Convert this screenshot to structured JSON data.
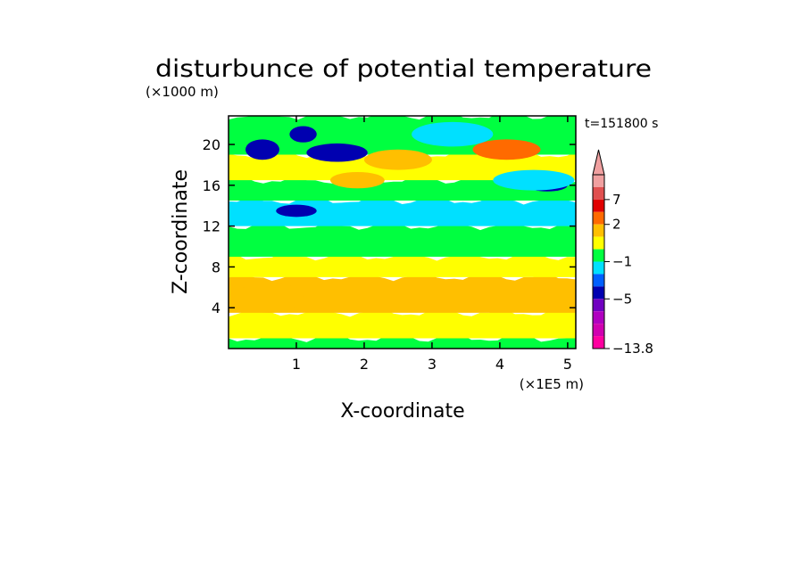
{
  "chart_data": {
    "type": "heatmap",
    "title": "disturbunce of potential temperature",
    "time_label": "t=151800 s",
    "xlabel": "X-coordinate",
    "ylabel": "Z-coordinate",
    "x_unit_label": "(×1E5 m)",
    "y_unit_label": "(×1000 m)",
    "xlim": [
      0,
      5.12
    ],
    "ylim": [
      0,
      22.8
    ],
    "x_ticks": [
      {
        "value": 1,
        "label": "1"
      },
      {
        "value": 2,
        "label": "2"
      },
      {
        "value": 3,
        "label": "3"
      },
      {
        "value": 4,
        "label": "4"
      },
      {
        "value": 5,
        "label": "5"
      }
    ],
    "y_ticks": [
      {
        "value": 4,
        "label": "4"
      },
      {
        "value": 8,
        "label": "8"
      },
      {
        "value": 12,
        "label": "12"
      },
      {
        "value": 16,
        "label": "16"
      },
      {
        "value": 20,
        "label": "20"
      }
    ],
    "colorbar": {
      "levels": [
        {
          "color": "#f0a0a0",
          "value": null
        },
        {
          "color": "#e05050",
          "value": null
        },
        {
          "color": "#e00000",
          "value": null
        },
        {
          "color": "#ff6a00",
          "value": null
        },
        {
          "color": "#ffbf00",
          "value": null
        },
        {
          "color": "#ffff00",
          "value": null
        },
        {
          "color": "#00ff40",
          "value": null
        },
        {
          "color": "#00e0ff",
          "value": null
        },
        {
          "color": "#0060ff",
          "value": null
        },
        {
          "color": "#0000b0",
          "value": null
        },
        {
          "color": "#7000c0",
          "value": null
        },
        {
          "color": "#b000c0",
          "value": null
        },
        {
          "color": "#d000b0",
          "value": null
        },
        {
          "color": "#ff00a0",
          "value": null
        }
      ],
      "tick_labels": [
        "7",
        "2",
        "−1",
        "−5",
        "−13.8"
      ],
      "extend": "max"
    },
    "field_bands": [
      {
        "z_range": [
          0,
          1
        ],
        "color": "#00ff40"
      },
      {
        "z_range": [
          1,
          3.5
        ],
        "color": "#ffff00"
      },
      {
        "z_range": [
          3.5,
          7
        ],
        "color": "#ffbf00"
      },
      {
        "z_range": [
          7,
          9
        ],
        "color": "#ffff00"
      },
      {
        "z_range": [
          9,
          12
        ],
        "color": "#00ff40"
      },
      {
        "z_range": [
          12,
          14.5
        ],
        "color": "#00e0ff"
      },
      {
        "z_range": [
          14.5,
          16.5
        ],
        "color": "#00ff40"
      },
      {
        "z_range": [
          16.5,
          19
        ],
        "color": "#ffff00"
      },
      {
        "z_range": [
          19,
          22.8
        ],
        "color": "#00ff40"
      }
    ],
    "field_features": [
      {
        "x": 0.5,
        "z": 19.5,
        "rx": 0.25,
        "rz": 1.0,
        "color": "#0000b0"
      },
      {
        "x": 1.6,
        "z": 19.2,
        "rx": 0.45,
        "rz": 0.9,
        "color": "#0000b0"
      },
      {
        "x": 1.1,
        "z": 21.0,
        "rx": 0.2,
        "rz": 0.8,
        "color": "#0000b0"
      },
      {
        "x": 4.7,
        "z": 16.0,
        "rx": 0.3,
        "rz": 0.6,
        "color": "#0000b0"
      },
      {
        "x": 1.0,
        "z": 13.5,
        "rx": 0.3,
        "rz": 0.6,
        "color": "#0000b0"
      },
      {
        "x": 4.1,
        "z": 19.5,
        "rx": 0.5,
        "rz": 1.0,
        "color": "#ff6a00"
      },
      {
        "x": 2.5,
        "z": 18.5,
        "rx": 0.5,
        "rz": 1.0,
        "color": "#ffbf00"
      },
      {
        "x": 1.9,
        "z": 16.5,
        "rx": 0.4,
        "rz": 0.8,
        "color": "#ffbf00"
      },
      {
        "x": 0.6,
        "z": 5.0,
        "rx": 0.5,
        "rz": 1.5,
        "color": "#ffbf00"
      },
      {
        "x": 3.3,
        "z": 21.0,
        "rx": 0.6,
        "rz": 1.2,
        "color": "#00e0ff"
      },
      {
        "x": 4.5,
        "z": 16.5,
        "rx": 0.6,
        "rz": 1.0,
        "color": "#00e0ff"
      }
    ]
  }
}
